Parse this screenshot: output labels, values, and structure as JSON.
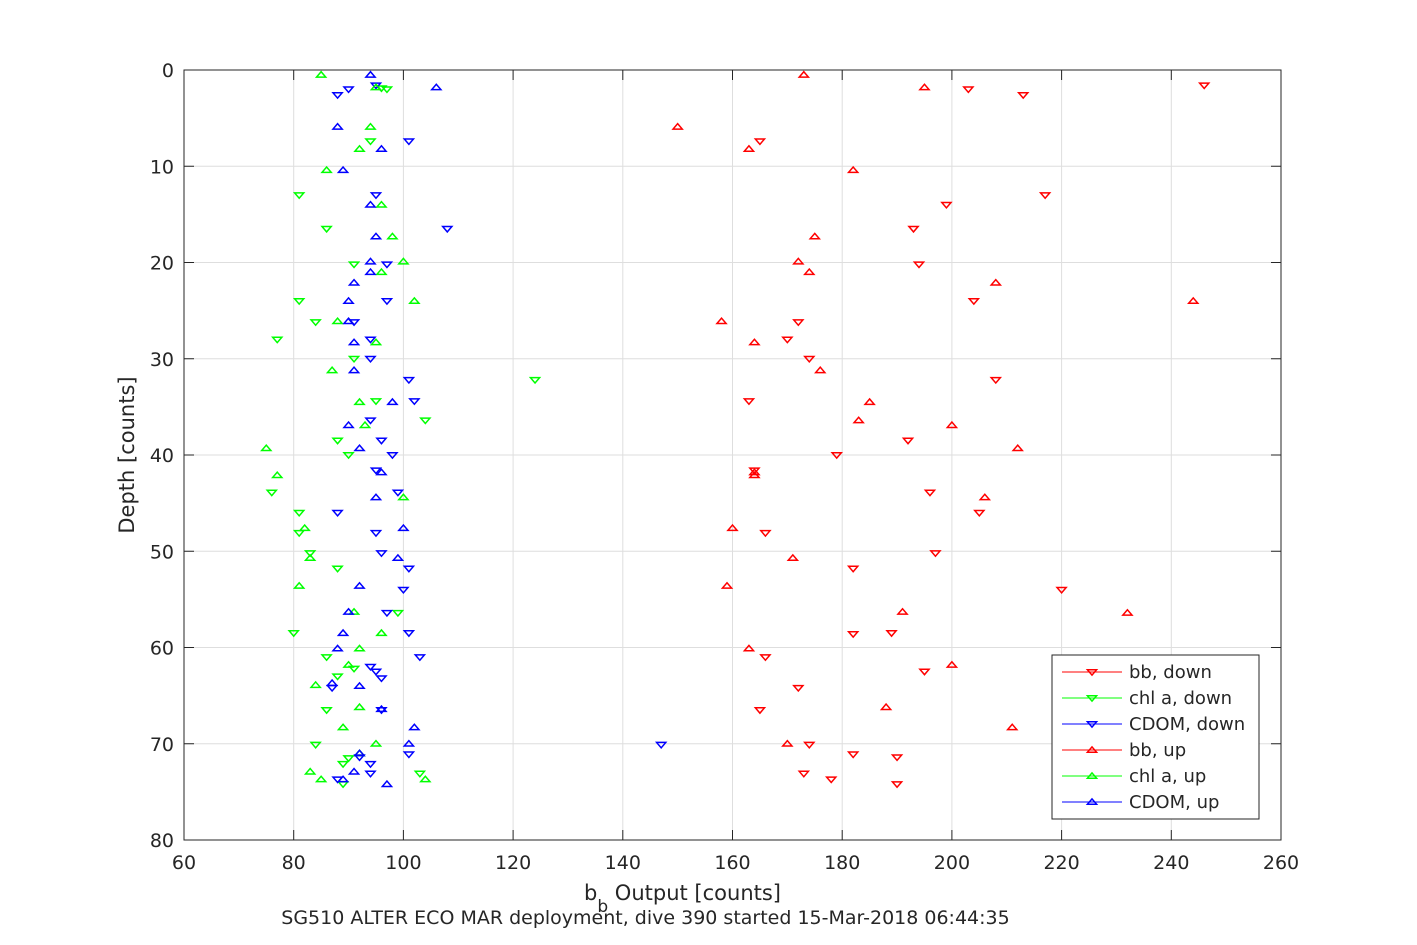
{
  "chart_data": {
    "type": "scatter",
    "title": "",
    "xlabel_main": "b",
    "xlabel_sub": "b",
    "xlabel_rest": " Output [counts]",
    "ylabel": "Depth [counts]",
    "caption": "SG510 ALTER ECO MAR deployment, dive 390 started 15-Mar-2018 06:44:35",
    "xlim": [
      60,
      260
    ],
    "ylim": [
      0,
      80
    ],
    "y_reversed": true,
    "x_ticks": [
      60,
      80,
      100,
      120,
      140,
      160,
      180,
      200,
      220,
      240,
      260
    ],
    "y_ticks": [
      0,
      10,
      20,
      30,
      40,
      50,
      60,
      70,
      80
    ],
    "x_tick_labels": [
      "60",
      "80",
      "100",
      "120",
      "140",
      "160",
      "180",
      "200",
      "220",
      "240",
      "260"
    ],
    "y_tick_labels": [
      "0",
      "10",
      "20",
      "30",
      "40",
      "50",
      "60",
      "70",
      "80"
    ],
    "grid": true,
    "legend_position": "bottom-right",
    "series": [
      {
        "name": "bb, down",
        "color": "#ff0000",
        "marker": "triangle-down",
        "points": [
          [
            246,
            1.6
          ],
          [
            203,
            2.0
          ],
          [
            213,
            2.6
          ],
          [
            165,
            7.4
          ],
          [
            217,
            13.0
          ],
          [
            199,
            14.0
          ],
          [
            193,
            16.5
          ],
          [
            194,
            20.2
          ],
          [
            204,
            24.0
          ],
          [
            172,
            26.2
          ],
          [
            170,
            28.0
          ],
          [
            174,
            30.0
          ],
          [
            208,
            32.2
          ],
          [
            163,
            34.4
          ],
          [
            192,
            38.5
          ],
          [
            179,
            40.0
          ],
          [
            164,
            41.6
          ],
          [
            196,
            43.9
          ],
          [
            205,
            46.0
          ],
          [
            166,
            48.1
          ],
          [
            197,
            50.2
          ],
          [
            182,
            51.8
          ],
          [
            220,
            54.0
          ],
          [
            182,
            58.6
          ],
          [
            189,
            58.5
          ],
          [
            166,
            61.0
          ],
          [
            195,
            62.5
          ],
          [
            172,
            64.2
          ],
          [
            165,
            66.5
          ],
          [
            174,
            70.1
          ],
          [
            182,
            71.1
          ],
          [
            190,
            71.4
          ],
          [
            173,
            73.1
          ],
          [
            178,
            73.7
          ],
          [
            190,
            74.2
          ]
        ]
      },
      {
        "name": "chl a, down",
        "color": "#00ff00",
        "marker": "triangle-down",
        "points": [
          [
            96,
            1.9
          ],
          [
            97,
            2.0
          ],
          [
            94,
            7.4
          ],
          [
            81,
            13.0
          ],
          [
            86,
            16.5
          ],
          [
            91,
            20.2
          ],
          [
            81,
            24.0
          ],
          [
            84,
            26.2
          ],
          [
            77,
            28.0
          ],
          [
            91,
            30.0
          ],
          [
            124,
            32.2
          ],
          [
            95,
            34.4
          ],
          [
            104,
            36.4
          ],
          [
            88,
            38.5
          ],
          [
            90,
            40.0
          ],
          [
            76,
            43.9
          ],
          [
            81,
            46.0
          ],
          [
            81,
            48.1
          ],
          [
            83,
            50.2
          ],
          [
            88,
            51.8
          ],
          [
            99,
            56.4
          ],
          [
            80,
            58.5
          ],
          [
            86,
            61.0
          ],
          [
            91,
            62.2
          ],
          [
            88,
            63.0
          ],
          [
            86,
            66.5
          ],
          [
            84,
            70.1
          ],
          [
            90,
            71.5
          ],
          [
            89,
            72.1
          ],
          [
            103,
            73.1
          ],
          [
            89,
            74.2
          ]
        ]
      },
      {
        "name": "CDOM, down",
        "color": "#0000ff",
        "marker": "triangle-down",
        "points": [
          [
            95,
            1.6
          ],
          [
            90,
            2.0
          ],
          [
            88,
            2.6
          ],
          [
            101,
            7.4
          ],
          [
            95,
            13.0
          ],
          [
            108,
            16.5
          ],
          [
            97,
            20.2
          ],
          [
            97,
            24.0
          ],
          [
            91,
            26.2
          ],
          [
            94,
            28.0
          ],
          [
            94,
            30.0
          ],
          [
            101,
            32.2
          ],
          [
            102,
            34.4
          ],
          [
            94,
            36.4
          ],
          [
            96,
            38.5
          ],
          [
            98,
            40.0
          ],
          [
            95,
            41.6
          ],
          [
            99,
            43.9
          ],
          [
            88,
            46.0
          ],
          [
            95,
            48.1
          ],
          [
            96,
            50.2
          ],
          [
            101,
            51.8
          ],
          [
            100,
            54.0
          ],
          [
            97,
            56.4
          ],
          [
            101,
            58.5
          ],
          [
            103,
            61.0
          ],
          [
            94,
            62.0
          ],
          [
            95,
            62.5
          ],
          [
            96,
            63.2
          ],
          [
            87,
            64.2
          ],
          [
            96,
            66.5
          ],
          [
            147,
            70.1
          ],
          [
            101,
            71.1
          ],
          [
            92,
            71.4
          ],
          [
            94,
            72.1
          ],
          [
            88,
            73.7
          ],
          [
            94,
            73.1
          ]
        ]
      },
      {
        "name": "bb, up",
        "color": "#ff0000",
        "marker": "triangle-up",
        "points": [
          [
            173,
            0.5
          ],
          [
            195,
            1.8
          ],
          [
            150,
            5.9
          ],
          [
            163,
            8.2
          ],
          [
            182,
            10.4
          ],
          [
            175,
            17.3
          ],
          [
            172,
            19.9
          ],
          [
            174,
            21.0
          ],
          [
            208,
            22.1
          ],
          [
            244,
            24.0
          ],
          [
            158,
            26.1
          ],
          [
            164,
            28.3
          ],
          [
            176,
            31.2
          ],
          [
            185,
            34.5
          ],
          [
            183,
            36.4
          ],
          [
            200,
            36.9
          ],
          [
            212,
            39.3
          ],
          [
            164,
            41.8
          ],
          [
            164,
            42.1
          ],
          [
            206,
            44.4
          ],
          [
            160,
            47.6
          ],
          [
            171,
            50.7
          ],
          [
            159,
            53.6
          ],
          [
            191,
            56.3
          ],
          [
            232,
            56.4
          ],
          [
            163,
            60.1
          ],
          [
            200,
            61.8
          ],
          [
            188,
            66.2
          ],
          [
            211,
            68.3
          ],
          [
            170,
            70.0
          ]
        ]
      },
      {
        "name": "chl a, up",
        "color": "#00ff00",
        "marker": "triangle-up",
        "points": [
          [
            85,
            0.5
          ],
          [
            95,
            1.8
          ],
          [
            94,
            5.9
          ],
          [
            92,
            8.2
          ],
          [
            86,
            10.4
          ],
          [
            96,
            14.0
          ],
          [
            98,
            17.3
          ],
          [
            100,
            19.9
          ],
          [
            96,
            21.0
          ],
          [
            102,
            24.0
          ],
          [
            88,
            26.1
          ],
          [
            95,
            28.3
          ],
          [
            87,
            31.2
          ],
          [
            92,
            34.5
          ],
          [
            93,
            36.9
          ],
          [
            75,
            39.3
          ],
          [
            77,
            42.1
          ],
          [
            100,
            44.4
          ],
          [
            82,
            47.6
          ],
          [
            83,
            50.7
          ],
          [
            81,
            53.6
          ],
          [
            91,
            56.3
          ],
          [
            96,
            58.5
          ],
          [
            92,
            60.1
          ],
          [
            90,
            61.8
          ],
          [
            84,
            63.9
          ],
          [
            92,
            66.2
          ],
          [
            89,
            68.3
          ],
          [
            95,
            70.0
          ],
          [
            92,
            71.0
          ],
          [
            83,
            72.9
          ],
          [
            85,
            73.7
          ],
          [
            104,
            73.7
          ]
        ]
      },
      {
        "name": "CDOM, up",
        "color": "#0000ff",
        "marker": "triangle-up",
        "points": [
          [
            94,
            0.5
          ],
          [
            106,
            1.8
          ],
          [
            88,
            5.9
          ],
          [
            96,
            8.2
          ],
          [
            89,
            10.4
          ],
          [
            94,
            14.0
          ],
          [
            95,
            17.3
          ],
          [
            94,
            19.9
          ],
          [
            94,
            21.0
          ],
          [
            91,
            22.1
          ],
          [
            90,
            24.0
          ],
          [
            90,
            26.1
          ],
          [
            91,
            28.3
          ],
          [
            91,
            31.2
          ],
          [
            98,
            34.5
          ],
          [
            90,
            36.9
          ],
          [
            92,
            39.3
          ],
          [
            96,
            41.8
          ],
          [
            95,
            44.4
          ],
          [
            100,
            47.6
          ],
          [
            99,
            50.7
          ],
          [
            92,
            53.6
          ],
          [
            90,
            56.3
          ],
          [
            89,
            58.5
          ],
          [
            88,
            60.1
          ],
          [
            87,
            63.7
          ],
          [
            92,
            64.0
          ],
          [
            96,
            66.4
          ],
          [
            102,
            68.3
          ],
          [
            101,
            70.0
          ],
          [
            91,
            72.9
          ],
          [
            97,
            74.2
          ],
          [
            89,
            73.7
          ],
          [
            92,
            71.0
          ]
        ]
      }
    ]
  }
}
